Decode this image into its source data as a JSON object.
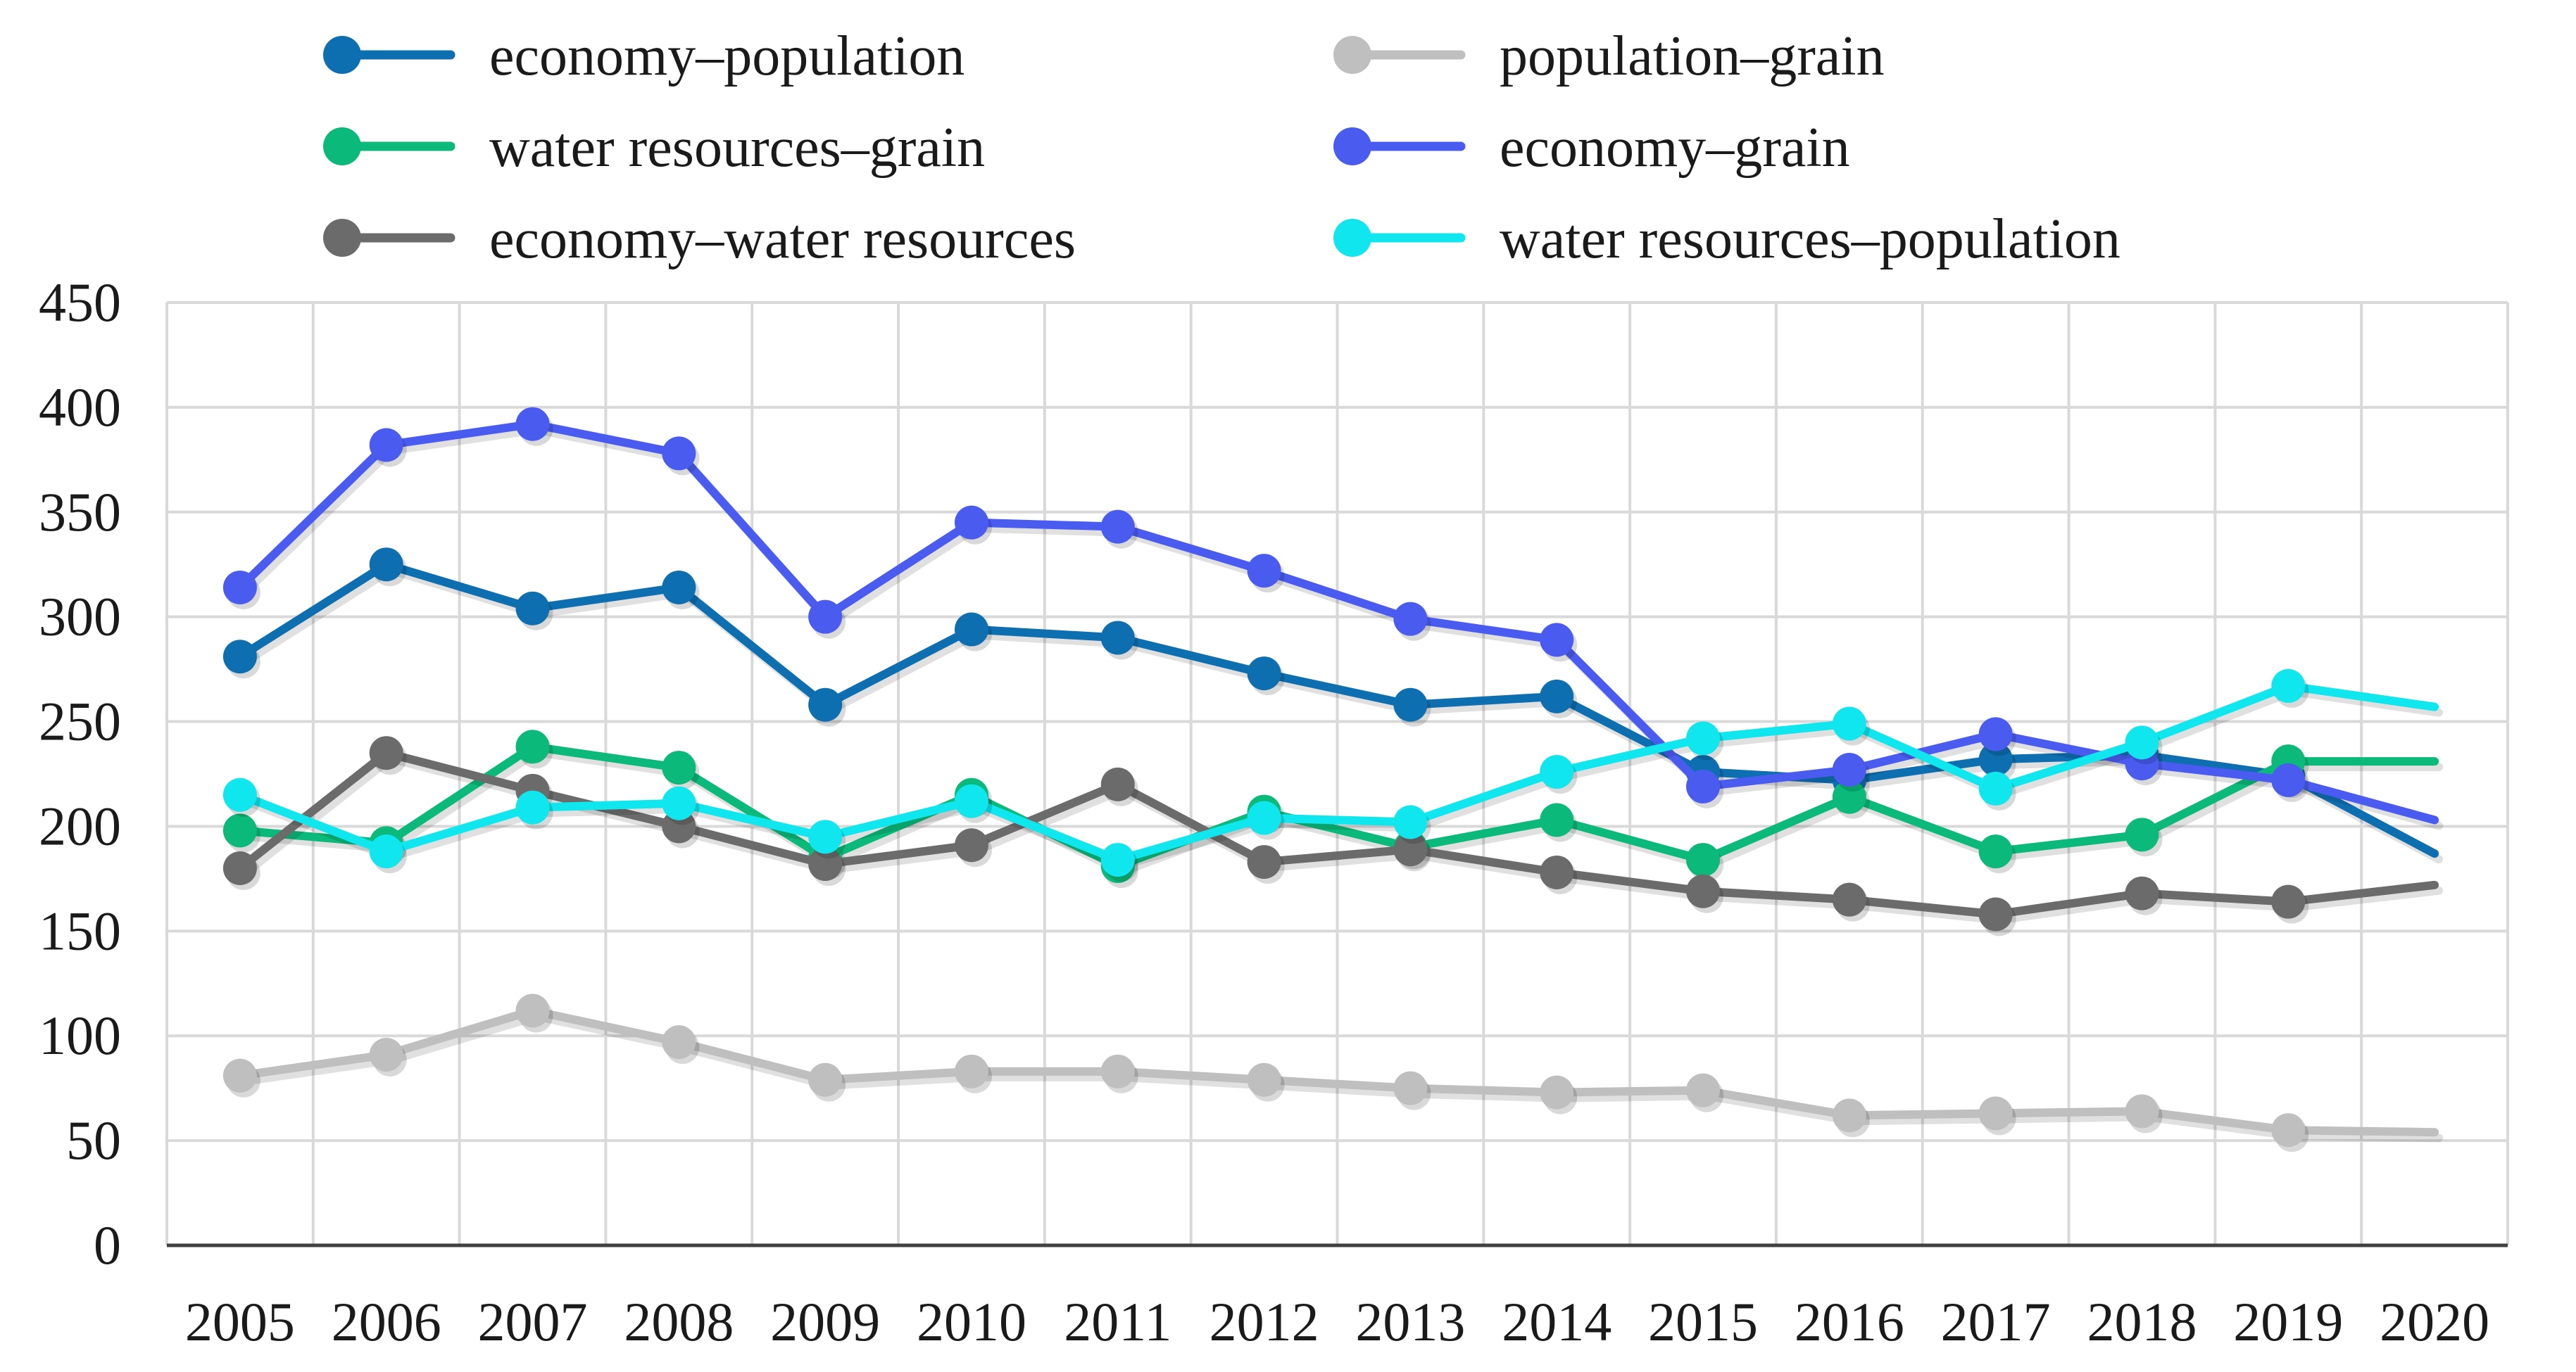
{
  "chart_data": {
    "type": "line",
    "title": "",
    "xlabel": "",
    "ylabel": "",
    "categories": [
      "2005",
      "2006",
      "2007",
      "2008",
      "2009",
      "2010",
      "2011",
      "2012",
      "2013",
      "2014",
      "2015",
      "2016",
      "2017",
      "2018",
      "2019",
      "2020"
    ],
    "ylim": [
      0,
      450
    ],
    "yticks": [
      0,
      50,
      100,
      150,
      200,
      250,
      300,
      350,
      400,
      450
    ],
    "grid": true,
    "legend_position": "top",
    "series": [
      {
        "name": "economy–population",
        "color": "#0e6fb0",
        "marker": true,
        "values": [
          281,
          325,
          304,
          314,
          258,
          294,
          290,
          273,
          258,
          262,
          226,
          222,
          232,
          234,
          224,
          187
        ]
      },
      {
        "name": "population–grain",
        "color": "#bfbfbf",
        "marker": true,
        "values": [
          81,
          91,
          112,
          97,
          79,
          83,
          83,
          79,
          75,
          73,
          74,
          62,
          63,
          64,
          55,
          54
        ]
      },
      {
        "name": "water resources–grain",
        "color": "#0bb97a",
        "marker": true,
        "values": [
          198,
          192,
          238,
          228,
          185,
          215,
          181,
          207,
          190,
          203,
          184,
          214,
          188,
          196,
          231,
          231
        ]
      },
      {
        "name": "economy–grain",
        "color": "#4a5cf0",
        "marker": true,
        "values": [
          314,
          382,
          392,
          378,
          300,
          345,
          343,
          322,
          299,
          289,
          219,
          227,
          244,
          230,
          222,
          203
        ]
      },
      {
        "name": "economy–water resources",
        "color": "#6b6b6b",
        "marker": true,
        "values": [
          180,
          235,
          217,
          200,
          182,
          191,
          220,
          183,
          189,
          178,
          169,
          165,
          158,
          168,
          164,
          172
        ]
      },
      {
        "name": "water resources–population",
        "color": "#10e6ee",
        "marker": true,
        "values": [
          215,
          188,
          209,
          211,
          195,
          212,
          184,
          204,
          202,
          226,
          242,
          249,
          218,
          240,
          267,
          257
        ]
      }
    ]
  }
}
